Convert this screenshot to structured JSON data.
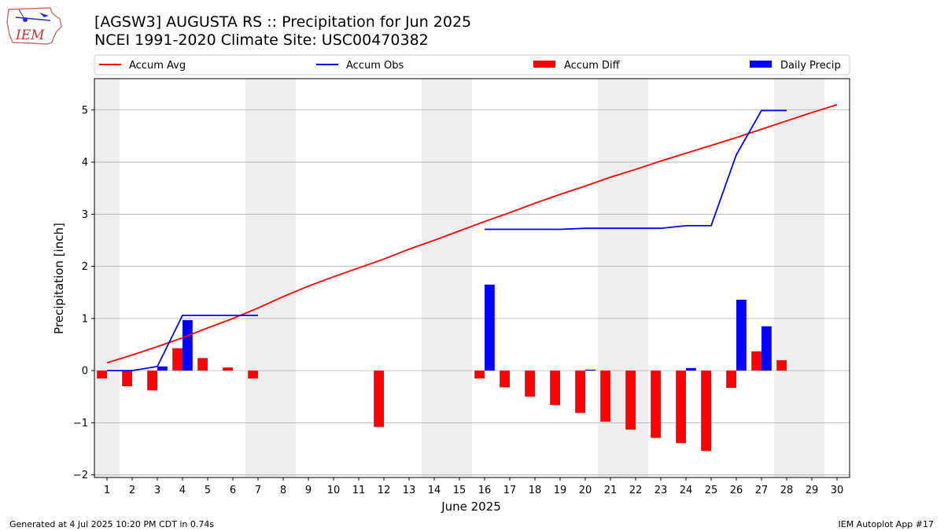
{
  "header": {
    "title_line1": "[AGSW3] AUGUSTA RS :: Precipitation for Jun 2025",
    "title_line2": "NCEI 1991-2020 Climate Site: USC00470382",
    "logo_text": "IEM"
  },
  "footer": {
    "generated": "Generated at 4 Jul 2025 10:20 PM CDT in 0.74s",
    "app": "IEM Autoplot App #17"
  },
  "colors": {
    "accum_avg": "#ff0000",
    "accum_obs": "#0000ff",
    "accum_diff": "#ff0000",
    "daily_precip": "#0000ff",
    "weekend_shade": "#eeeeee",
    "grid": "#b0b0b0"
  },
  "chart_data": {
    "type": "bar",
    "xlabel": "June 2025",
    "ylabel": "Precipitation [inch]",
    "xlim": [
      0.5,
      30.5
    ],
    "ylim": [
      -2.05,
      5.6
    ],
    "yticks": [
      -2,
      -1,
      0,
      1,
      2,
      3,
      4,
      5
    ],
    "ytick_labels": [
      "−2",
      "−1",
      "0",
      "1",
      "2",
      "3",
      "4",
      "5"
    ],
    "grid": "horizontal",
    "legend_placement": "top",
    "legend": [
      "Accum Avg",
      "Accum Obs",
      "Accum Diff",
      "Daily Precip"
    ],
    "shaded_days": [
      1,
      7,
      8,
      14,
      15,
      21,
      22,
      28,
      29
    ],
    "x": [
      1,
      2,
      3,
      4,
      5,
      6,
      7,
      8,
      9,
      10,
      11,
      12,
      13,
      14,
      15,
      16,
      17,
      18,
      19,
      20,
      21,
      22,
      23,
      24,
      25,
      26,
      27,
      28,
      29,
      30
    ],
    "series": [
      {
        "name": "Accum Avg",
        "kind": "line",
        "values": [
          0.15,
          0.3,
          0.46,
          0.63,
          0.82,
          1.0,
          1.2,
          1.42,
          1.62,
          1.8,
          1.97,
          2.14,
          2.33,
          2.5,
          2.68,
          2.86,
          3.03,
          3.21,
          3.38,
          3.54,
          3.71,
          3.86,
          4.02,
          4.17,
          4.32,
          4.47,
          4.63,
          4.79,
          4.95,
          5.1
        ]
      },
      {
        "name": "Accum Obs",
        "kind": "line",
        "segments": [
          {
            "x": [
              1,
              2,
              3,
              4,
              5,
              6,
              7
            ],
            "values": [
              0.0,
              0.0,
              0.08,
              1.06,
              1.06,
              1.06,
              1.06
            ]
          },
          {
            "x": [
              16,
              17,
              18,
              19,
              20,
              21,
              22,
              23,
              24,
              25,
              26,
              27,
              28
            ],
            "values": [
              2.71,
              2.71,
              2.71,
              2.71,
              2.73,
              2.73,
              2.73,
              2.73,
              2.78,
              2.78,
              4.14,
              4.99,
              4.99
            ]
          }
        ]
      },
      {
        "name": "Accum Diff",
        "kind": "bar",
        "values": [
          -0.15,
          -0.3,
          -0.38,
          0.43,
          0.24,
          0.06,
          -0.15,
          null,
          null,
          null,
          null,
          -1.08,
          null,
          null,
          null,
          -0.15,
          -0.32,
          -0.5,
          -0.66,
          -0.81,
          -0.98,
          -1.13,
          -1.29,
          -1.39,
          -1.54,
          -0.33,
          0.37,
          0.2,
          null,
          null
        ]
      },
      {
        "name": "Daily Precip",
        "kind": "bar",
        "values": [
          0,
          0,
          0.08,
          0.97,
          0,
          0,
          0,
          null,
          null,
          null,
          null,
          null,
          null,
          null,
          null,
          1.65,
          0,
          0,
          0,
          0.02,
          0,
          0,
          0,
          0.05,
          0,
          1.36,
          0.85,
          0,
          null,
          null
        ]
      }
    ]
  }
}
